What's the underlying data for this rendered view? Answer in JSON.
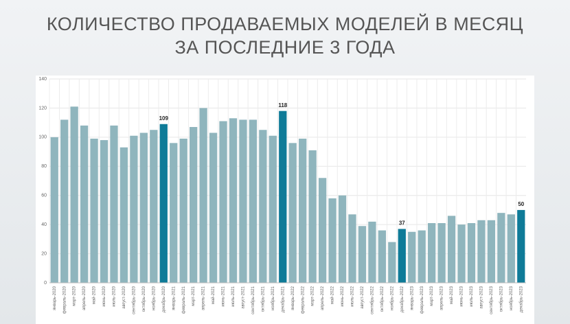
{
  "chart_data": {
    "type": "bar",
    "title": [
      "КОЛИЧЕСТВО ПРОДАВАЕМЫХ МОДЕЛЕЙ В МЕСЯЦ",
      "ЗА ПОСЛЕДНИЕ 3 ГОДА"
    ],
    "categories": [
      "январь-2020",
      "февраль-2020",
      "март-2020",
      "апрель-2020",
      "май-2020",
      "июнь-2020",
      "июль-2020",
      "август-2020",
      "сентябрь-2020",
      "октябрь-2020",
      "ноябрь-2020",
      "декабрь-2020",
      "январь-2021",
      "февраль-2021",
      "март-2021",
      "апрель-2021",
      "май-2021",
      "июнь-2021",
      "июль-2021",
      "август-2021",
      "сентябрь-2021",
      "октябрь-2021",
      "ноябрь-2021",
      "декабрь-2021",
      "январь-2022",
      "февраль-2022",
      "март-2022",
      "апрель-2022",
      "май-2022",
      "июнь-2022",
      "июль-2022",
      "август-2022",
      "сентябрь-2022",
      "октябрь-2022",
      "ноябрь-2022",
      "декабрь-2022",
      "январь-2023",
      "февраль-2023",
      "март-2023",
      "апрель-2023",
      "май-2023",
      "июнь-2023",
      "июль-2023",
      "август-2023",
      "сентябрь-2023",
      "октябрь-2023",
      "ноябрь-2023",
      "декабрь-2023"
    ],
    "values": [
      100,
      112,
      121,
      108,
      99,
      98,
      108,
      93,
      101,
      103,
      105,
      109,
      96,
      99,
      107,
      120,
      103,
      111,
      113,
      112,
      112,
      105,
      101,
      118,
      96,
      99,
      91,
      72,
      58,
      60,
      47,
      39,
      42,
      36,
      28,
      37,
      35,
      36,
      41,
      41,
      46,
      40,
      41,
      43,
      43,
      48,
      47,
      50
    ],
    "color": "#8fb5bd",
    "highlight_color": "#0f7b98",
    "highlighted": [
      11,
      23,
      35,
      47
    ],
    "ylim": [
      0,
      140
    ],
    "yticks": [
      0,
      20,
      40,
      60,
      80,
      100,
      120,
      140
    ],
    "grid": true
  }
}
